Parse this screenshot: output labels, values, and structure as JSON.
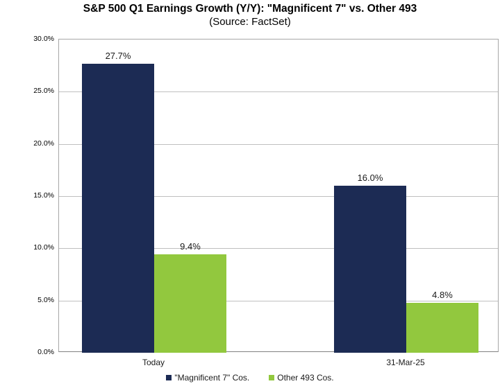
{
  "chart_data": {
    "type": "bar",
    "title": "S&P 500 Q1 Earnings Growth (Y/Y): \"Magnificent 7\" vs. Other 493",
    "subtitle": "(Source: FactSet)",
    "categories": [
      "Today",
      "31-Mar-25"
    ],
    "series": [
      {
        "name": "\"Magnificent 7\" Cos.",
        "color": "#1c2b54",
        "values": [
          27.7,
          16.0
        ],
        "value_labels": [
          "27.7%",
          "16.0%"
        ]
      },
      {
        "name": "Other 493 Cos.",
        "color": "#92c83e",
        "values": [
          9.4,
          4.8
        ],
        "value_labels": [
          "9.4%",
          "4.8%"
        ]
      }
    ],
    "ylim": [
      0,
      30
    ],
    "ytick_step": 5,
    "ytick_labels": [
      "0.0%",
      "5.0%",
      "10.0%",
      "15.0%",
      "20.0%",
      "25.0%",
      "30.0%"
    ],
    "grid": true,
    "legend_position": "bottom",
    "axis_colors": {
      "gridline": "#bfbfbf",
      "plot_border": "#a6a6a6",
      "axis_line": "#808080",
      "tick_text": "#000000"
    }
  }
}
